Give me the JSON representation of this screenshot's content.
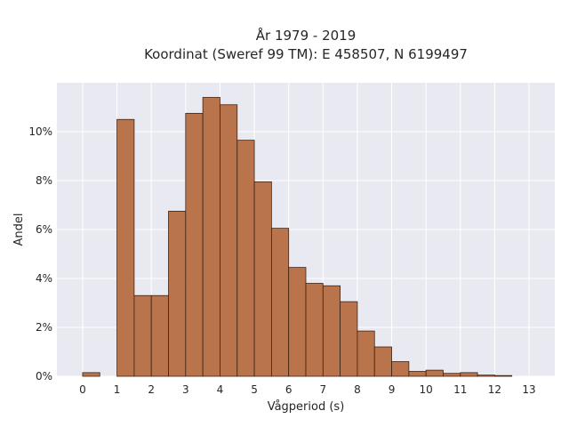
{
  "chart_data": {
    "type": "bar",
    "title_line1": "År 1979 - 2019",
    "title_line2": "Koordinat (Sweref 99 TM): E 458507, N 6199497",
    "xlabel": "Vågperiod (s)",
    "ylabel": "Andel",
    "xlim": [
      -0.75,
      13.75
    ],
    "ylim": [
      0,
      12
    ],
    "xticks": [
      0,
      1,
      2,
      3,
      4,
      5,
      6,
      7,
      8,
      9,
      10,
      11,
      12,
      13
    ],
    "yticks": [
      0,
      2,
      4,
      6,
      8,
      10
    ],
    "ytick_labels": [
      "0%",
      "2%",
      "4%",
      "6%",
      "8%",
      "10%"
    ],
    "bin_width": 0.5,
    "bins": [
      {
        "x0": 0.0,
        "value": 0.15
      },
      {
        "x0": 1.0,
        "value": 10.5
      },
      {
        "x0": 1.5,
        "value": 3.3
      },
      {
        "x0": 2.0,
        "value": 3.3
      },
      {
        "x0": 2.5,
        "value": 6.75
      },
      {
        "x0": 3.0,
        "value": 10.75
      },
      {
        "x0": 3.5,
        "value": 11.4
      },
      {
        "x0": 4.0,
        "value": 11.1
      },
      {
        "x0": 4.5,
        "value": 9.65
      },
      {
        "x0": 5.0,
        "value": 7.95
      },
      {
        "x0": 5.5,
        "value": 6.05
      },
      {
        "x0": 6.0,
        "value": 4.45
      },
      {
        "x0": 6.5,
        "value": 3.8
      },
      {
        "x0": 7.0,
        "value": 3.7
      },
      {
        "x0": 7.5,
        "value": 3.05
      },
      {
        "x0": 8.0,
        "value": 1.85
      },
      {
        "x0": 8.5,
        "value": 1.2
      },
      {
        "x0": 9.0,
        "value": 0.6
      },
      {
        "x0": 9.5,
        "value": 0.2
      },
      {
        "x0": 10.0,
        "value": 0.25
      },
      {
        "x0": 10.5,
        "value": 0.12
      },
      {
        "x0": 11.0,
        "value": 0.15
      },
      {
        "x0": 11.5,
        "value": 0.05
      },
      {
        "x0": 12.0,
        "value": 0.03
      }
    ],
    "grid": true,
    "colors": {
      "bar_fill": "#b5693d",
      "bar_edge": "#3d2416",
      "plot_bg": "#e9e9f1",
      "grid": "#ffffff"
    }
  }
}
